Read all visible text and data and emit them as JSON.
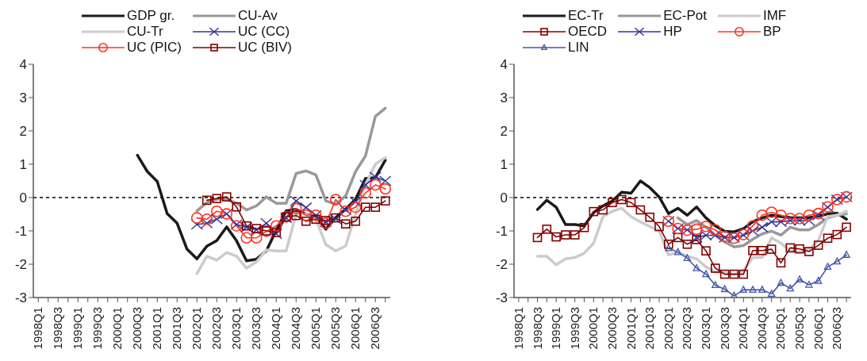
{
  "chart_data": [
    {
      "type": "line",
      "categories": [
        "1998Q1",
        null,
        "1998Q3",
        null,
        "1999Q1",
        null,
        "1999Q3",
        null,
        "2000Q1",
        null,
        "2000Q3",
        null,
        "2001Q1",
        null,
        "2001Q3",
        null,
        "2002Q1",
        null,
        "2002Q3",
        null,
        "2003Q1",
        null,
        "2003Q3",
        null,
        "2004Q1",
        null,
        "2004Q3",
        null,
        "2005Q1",
        null,
        "2005Q3",
        null,
        "2006Q1",
        null,
        "2006Q3",
        null
      ],
      "ylim": [
        -3,
        4
      ],
      "yticks": [
        -3,
        -2,
        -1,
        0,
        1,
        2,
        3,
        4
      ],
      "grid": false,
      "legend": "top",
      "ref_lines": [
        {
          "axis": "y",
          "value": 0,
          "color": "#000000",
          "line_style": "dashed"
        }
      ],
      "series": [
        {
          "name": "GDP gr.",
          "color": "#1a1a1a",
          "marker": "none",
          "values": [
            null,
            null,
            null,
            null,
            null,
            null,
            null,
            null,
            null,
            null,
            1.27,
            0.78,
            0.48,
            -0.48,
            -0.77,
            -1.55,
            -1.84,
            -1.46,
            -1.29,
            -0.88,
            -1.3,
            -1.9,
            -1.85,
            -1.6,
            -0.98,
            -0.4,
            -0.35,
            -0.5,
            -0.6,
            -0.95,
            -0.6,
            -0.35,
            -0.05,
            0.57,
            0.6,
            1.12
          ]
        },
        {
          "name": "CU-Av",
          "color": "#999999",
          "marker": "none",
          "values": [
            null,
            null,
            null,
            null,
            null,
            null,
            null,
            null,
            null,
            null,
            null,
            null,
            null,
            null,
            null,
            null,
            -0.4,
            -0.15,
            -0.05,
            -0.05,
            -0.17,
            -0.37,
            -0.25,
            0.02,
            -0.17,
            -0.17,
            0.72,
            0.8,
            0.68,
            -0.1,
            -0.2,
            0.05,
            0.78,
            1.25,
            2.44,
            2.68
          ]
        },
        {
          "name": "CU-Tr",
          "color": "#cccccc",
          "marker": "none",
          "values": [
            null,
            null,
            null,
            null,
            null,
            null,
            null,
            null,
            null,
            null,
            null,
            null,
            null,
            null,
            null,
            null,
            -2.28,
            -1.76,
            -1.88,
            -1.65,
            -1.76,
            -2.12,
            -1.93,
            -1.57,
            -1.6,
            -1.6,
            -0.5,
            -0.5,
            -0.65,
            -1.41,
            -1.6,
            -1.45,
            -0.5,
            0.38,
            1.0,
            1.2
          ]
        },
        {
          "name": "UC (CC)",
          "color": "#333399",
          "marker": "cross",
          "values": [
            null,
            null,
            null,
            null,
            null,
            null,
            null,
            null,
            null,
            null,
            null,
            null,
            null,
            null,
            null,
            null,
            -0.81,
            -0.77,
            -0.65,
            -0.49,
            -0.81,
            -0.89,
            -0.97,
            -0.77,
            -1.09,
            -0.61,
            -0.1,
            -0.3,
            -0.53,
            -0.73,
            -0.65,
            -0.37,
            -0.13,
            0.38,
            0.62,
            0.5
          ]
        },
        {
          "name": "UC (PIC)",
          "color": "#ff3322",
          "marker": "circle",
          "values": [
            null,
            null,
            null,
            null,
            null,
            null,
            null,
            null,
            null,
            null,
            null,
            null,
            null,
            null,
            null,
            null,
            -0.61,
            -0.65,
            -0.41,
            -0.49,
            -0.85,
            -1.21,
            -1.21,
            -1.01,
            -0.85,
            -0.58,
            -0.33,
            -0.53,
            -0.53,
            -0.77,
            -0.06,
            -0.41,
            -0.29,
            0.14,
            0.38,
            0.26
          ]
        },
        {
          "name": "UC (BIV)",
          "color": "#800000",
          "marker": "square",
          "values": [
            null,
            null,
            null,
            null,
            null,
            null,
            null,
            null,
            null,
            null,
            null,
            null,
            null,
            null,
            null,
            null,
            null,
            -0.08,
            -0.03,
            0.02,
            -0.28,
            -0.85,
            -0.93,
            -1.0,
            -1.05,
            -0.58,
            -0.54,
            -0.71,
            -0.65,
            -0.69,
            -0.61,
            -0.79,
            -0.71,
            -0.29,
            -0.29,
            -0.1
          ]
        }
      ]
    },
    {
      "type": "line",
      "categories": [
        "1998Q1",
        null,
        "1998Q3",
        null,
        "1999Q1",
        null,
        "1999Q3",
        null,
        "2000Q1",
        null,
        "2000Q3",
        null,
        "2001Q1",
        null,
        "2001Q3",
        null,
        "2002Q1",
        null,
        "2002Q3",
        null,
        "2003Q1",
        null,
        "2003Q3",
        null,
        "2004Q1",
        null,
        "2004Q3",
        null,
        "2005Q1",
        null,
        "2005Q3",
        null,
        "2006Q1",
        null,
        "2006Q3",
        null
      ],
      "ylim": [
        -3,
        4
      ],
      "yticks": [
        -3,
        -2,
        -1,
        0,
        1,
        2,
        3,
        4
      ],
      "grid": false,
      "legend": "top",
      "ref_lines": [
        {
          "axis": "y",
          "value": 0,
          "color": "#000000",
          "line_style": "dashed"
        }
      ],
      "series": [
        {
          "name": "EC-Tr",
          "color": "#1a1a1a",
          "marker": "none",
          "values": [
            null,
            null,
            -0.36,
            -0.08,
            -0.29,
            -0.81,
            -0.81,
            -0.85,
            -0.45,
            -0.25,
            -0.1,
            0.16,
            0.13,
            0.5,
            0.3,
            0.02,
            -0.48,
            -0.32,
            -0.53,
            -0.28,
            -0.61,
            -0.85,
            -1.01,
            -1.03,
            -0.93,
            -0.73,
            -0.61,
            -0.53,
            -0.57,
            -0.6,
            -0.61,
            -0.6,
            -0.56,
            -0.49,
            -0.47,
            -0.65
          ]
        },
        {
          "name": "EC-Pot",
          "color": "#999999",
          "marker": "none",
          "values": [
            null,
            null,
            null,
            null,
            null,
            null,
            null,
            null,
            null,
            null,
            null,
            null,
            null,
            null,
            null,
            null,
            null,
            -0.61,
            -0.81,
            -0.69,
            -0.89,
            -1.13,
            -1.33,
            -1.48,
            -1.44,
            -1.25,
            -1.09,
            -1.01,
            -1.13,
            -0.89,
            -0.97,
            -0.97,
            -0.81,
            -0.61,
            -0.53,
            -0.49
          ]
        },
        {
          "name": "IMF",
          "color": "#cccccc",
          "marker": "none",
          "values": [
            null,
            null,
            -1.76,
            -1.76,
            -2.02,
            -1.84,
            -1.8,
            -1.67,
            -1.37,
            -0.57,
            -0.41,
            -0.32,
            -0.57,
            -0.73,
            -0.87,
            -1.0,
            -1.72,
            -1.64,
            -1.76,
            -1.84,
            -2.08,
            -2.24,
            -2.25,
            -2.3,
            -2.2,
            -1.8,
            -1.8,
            -1.21,
            -1.37,
            -1.6,
            -1.64,
            -1.56,
            -1.29,
            -0.57,
            -0.53,
            -0.41
          ]
        },
        {
          "name": "OECD",
          "color": "#800000",
          "marker": "square",
          "values": [
            null,
            null,
            -1.2,
            -0.95,
            -1.18,
            -1.12,
            -1.12,
            -0.9,
            -0.42,
            -0.37,
            -0.15,
            -0.06,
            -0.15,
            -0.37,
            -0.59,
            -0.87,
            -1.4,
            -1.2,
            -1.4,
            -1.26,
            -1.6,
            -2.12,
            -2.3,
            -2.3,
            -2.3,
            -1.59,
            -1.59,
            -1.55,
            -1.96,
            -1.51,
            -1.54,
            -1.62,
            -1.43,
            -1.22,
            -1.11,
            -0.89
          ]
        },
        {
          "name": "HP",
          "color": "#333399",
          "marker": "cross",
          "values": [
            null,
            null,
            null,
            null,
            null,
            null,
            null,
            null,
            null,
            null,
            null,
            null,
            null,
            null,
            null,
            null,
            -0.71,
            -0.93,
            -0.97,
            -1.2,
            -1.13,
            -1.13,
            -1.2,
            -1.2,
            -1.13,
            -1.0,
            -0.89,
            -0.73,
            -0.73,
            -0.69,
            -0.69,
            -0.69,
            -0.53,
            -0.29,
            -0.06,
            0.02
          ]
        },
        {
          "name": "BP",
          "color": "#ff3322",
          "marker": "circle",
          "values": [
            null,
            null,
            null,
            null,
            null,
            null,
            null,
            null,
            null,
            null,
            null,
            null,
            null,
            null,
            null,
            null,
            -0.71,
            -0.93,
            -0.98,
            -0.95,
            -0.87,
            -0.97,
            -1.17,
            -1.22,
            -1.11,
            -0.85,
            -0.53,
            -0.44,
            -0.53,
            -0.63,
            -0.63,
            -0.53,
            -0.48,
            -0.28,
            -0.06,
            0.02
          ]
        },
        {
          "name": "LIN",
          "color": "#4455aa",
          "marker": "triangle",
          "values": [
            null,
            null,
            null,
            null,
            null,
            null,
            null,
            null,
            null,
            null,
            null,
            null,
            null,
            null,
            null,
            null,
            -1.52,
            -1.64,
            -1.82,
            -2.12,
            -2.3,
            -2.63,
            -2.75,
            -2.95,
            -2.77,
            -2.77,
            -2.77,
            -2.89,
            -2.56,
            -2.73,
            -2.46,
            -2.62,
            -2.5,
            -2.08,
            -1.92,
            -1.72
          ]
        }
      ]
    }
  ]
}
